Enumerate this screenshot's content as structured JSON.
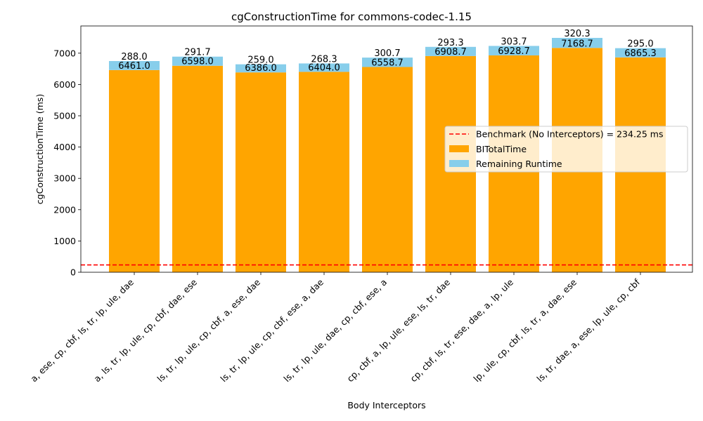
{
  "chart_data": {
    "type": "bar",
    "stacked": true,
    "title": "cgConstructionTime for commons-codec-1.15",
    "xlabel": "Body Interceptors",
    "ylabel": "cgConstructionTime (ms)",
    "ylim": [
      0,
      7870
    ],
    "yticks": [
      0,
      1000,
      2000,
      3000,
      4000,
      5000,
      6000,
      7000
    ],
    "grid": false,
    "legend_position": "center-right",
    "categories": [
      "a, ese, cp, cbf, ls, tr, lp, ule, dae",
      "a, ls, tr, lp, ule, cp, cbf, dae, ese",
      "ls, tr, lp, ule, cp, cbf, a, ese, dae",
      "ls, tr, lp, ule, cp, cbf, ese, a, dae",
      "ls, tr, lp, ule, dae, cp, cbf, ese, a",
      "cp, cbf, a, lp, ule, ese, ls, tr, dae",
      "cp, cbf, ls, tr, ese, dae, a, lp, ule",
      "lp, ule, cp, cbf, ls, tr, a, dae, ese",
      "ls, tr, dae, a, ese, lp, ule, cp, cbf"
    ],
    "series": [
      {
        "name": "BITotalTime",
        "color": "#ffa500",
        "values": [
          6461.0,
          6598.0,
          6386.0,
          6404.0,
          6558.7,
          6908.7,
          6928.7,
          7168.7,
          6865.3
        ],
        "labels": [
          "6461.0",
          "6598.0",
          "6386.0",
          "6404.0",
          "6558.7",
          "6908.7",
          "6928.7",
          "7168.7",
          "6865.3"
        ]
      },
      {
        "name": "Remaining Runtime",
        "color": "#87ceeb",
        "values": [
          288.0,
          291.7,
          259.0,
          268.3,
          300.7,
          293.3,
          303.7,
          320.3,
          295.0
        ],
        "labels": [
          "288.0",
          "291.7",
          "259.0",
          "268.3",
          "300.7",
          "293.3",
          "303.7",
          "320.3",
          "295.0"
        ]
      }
    ],
    "benchmark": {
      "label": "Benchmark (No Interceptors) = 234.25 ms",
      "value": 234.25,
      "color": "#ff0000"
    }
  }
}
